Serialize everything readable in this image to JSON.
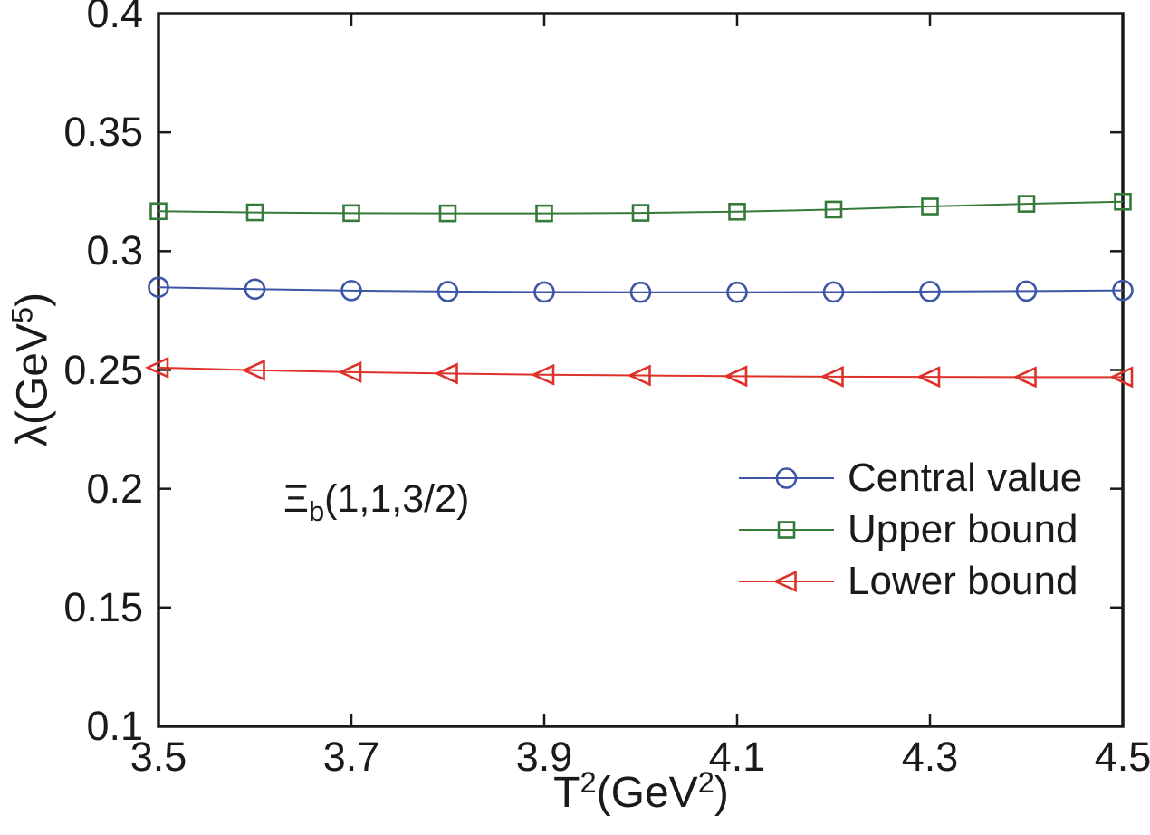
{
  "figure": {
    "background": "#ffffff",
    "text_color": "#1a1a1a",
    "annotation": {
      "symbol": "Ξ",
      "subscript": "b",
      "args": "(1,1,3/2)"
    },
    "xlabel_parts": {
      "base": "T",
      "sup": "2",
      "unit": "(GeV",
      "unit_sup": "2",
      "close": ")"
    },
    "ylabel_parts": {
      "base": "λ(GeV",
      "sup": "5",
      "close": ")"
    }
  },
  "chart_data": {
    "type": "line",
    "title": "",
    "xlabel": "T^2(GeV^2)",
    "ylabel": "λ(GeV^5)",
    "grid": false,
    "legend_position": "right-middle-inside",
    "xlim": [
      3.5,
      4.5
    ],
    "ylim": [
      0.1,
      0.4
    ],
    "xticks": {
      "values": [
        3.5,
        3.7,
        3.9,
        4.1,
        4.3,
        4.5
      ],
      "labels": [
        "3.5",
        "3.7",
        "3.9",
        "4.1",
        "4.3",
        "4.5"
      ]
    },
    "yticks": {
      "values": [
        0.1,
        0.15,
        0.2,
        0.25,
        0.3,
        0.35,
        0.4
      ],
      "labels": [
        "0.1",
        "0.15",
        "0.2",
        "0.25",
        "0.3",
        "0.35",
        "0.4"
      ]
    },
    "x": [
      3.5,
      3.6,
      3.7,
      3.8,
      3.9,
      4.0,
      4.1,
      4.2,
      4.3,
      4.4,
      4.5
    ],
    "series": [
      {
        "name": "Central value",
        "marker": "circle",
        "color": "#3d55a5",
        "values": [
          0.2848,
          0.284,
          0.2834,
          0.283,
          0.2828,
          0.2827,
          0.2827,
          0.2828,
          0.283,
          0.2832,
          0.2835
        ]
      },
      {
        "name": "Upper bound",
        "marker": "square",
        "color": "#347a38",
        "values": [
          0.3168,
          0.3163,
          0.316,
          0.3159,
          0.3159,
          0.3161,
          0.3166,
          0.3175,
          0.3188,
          0.3199,
          0.3208
        ]
      },
      {
        "name": "Lower bound",
        "marker": "triangle-left",
        "color": "#dd3129",
        "values": [
          0.251,
          0.2499,
          0.2491,
          0.2485,
          0.248,
          0.2477,
          0.2474,
          0.2472,
          0.2471,
          0.247,
          0.247
        ]
      }
    ]
  }
}
